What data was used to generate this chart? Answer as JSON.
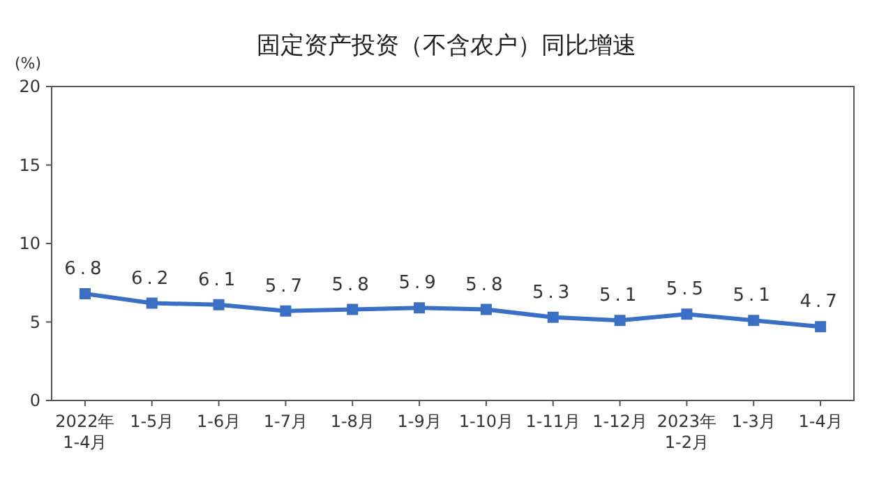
{
  "chart_data": {
    "type": "line",
    "title": "固定资产投资（不含农户）同比增速",
    "ylabel": "(%)",
    "categories": [
      "2022年\n1-4月",
      "1-5月",
      "1-6月",
      "1-7月",
      "1-8月",
      "1-9月",
      "1-10月",
      "1-11月",
      "1-12月",
      "2023年\n1-2月",
      "1-3月",
      "1-4月"
    ],
    "series": [
      {
        "color": "#3a6fc4",
        "values": [
          6.8,
          6.2,
          6.1,
          5.7,
          5.8,
          5.9,
          5.8,
          5.3,
          5.1,
          5.5,
          5.1,
          4.7
        ]
      }
    ],
    "ylim": [
      0,
      20
    ],
    "yticks": [
      0,
      5,
      10,
      15,
      20
    ],
    "grid": false,
    "marker": "square",
    "line_style": "solid",
    "data_labels": true
  }
}
